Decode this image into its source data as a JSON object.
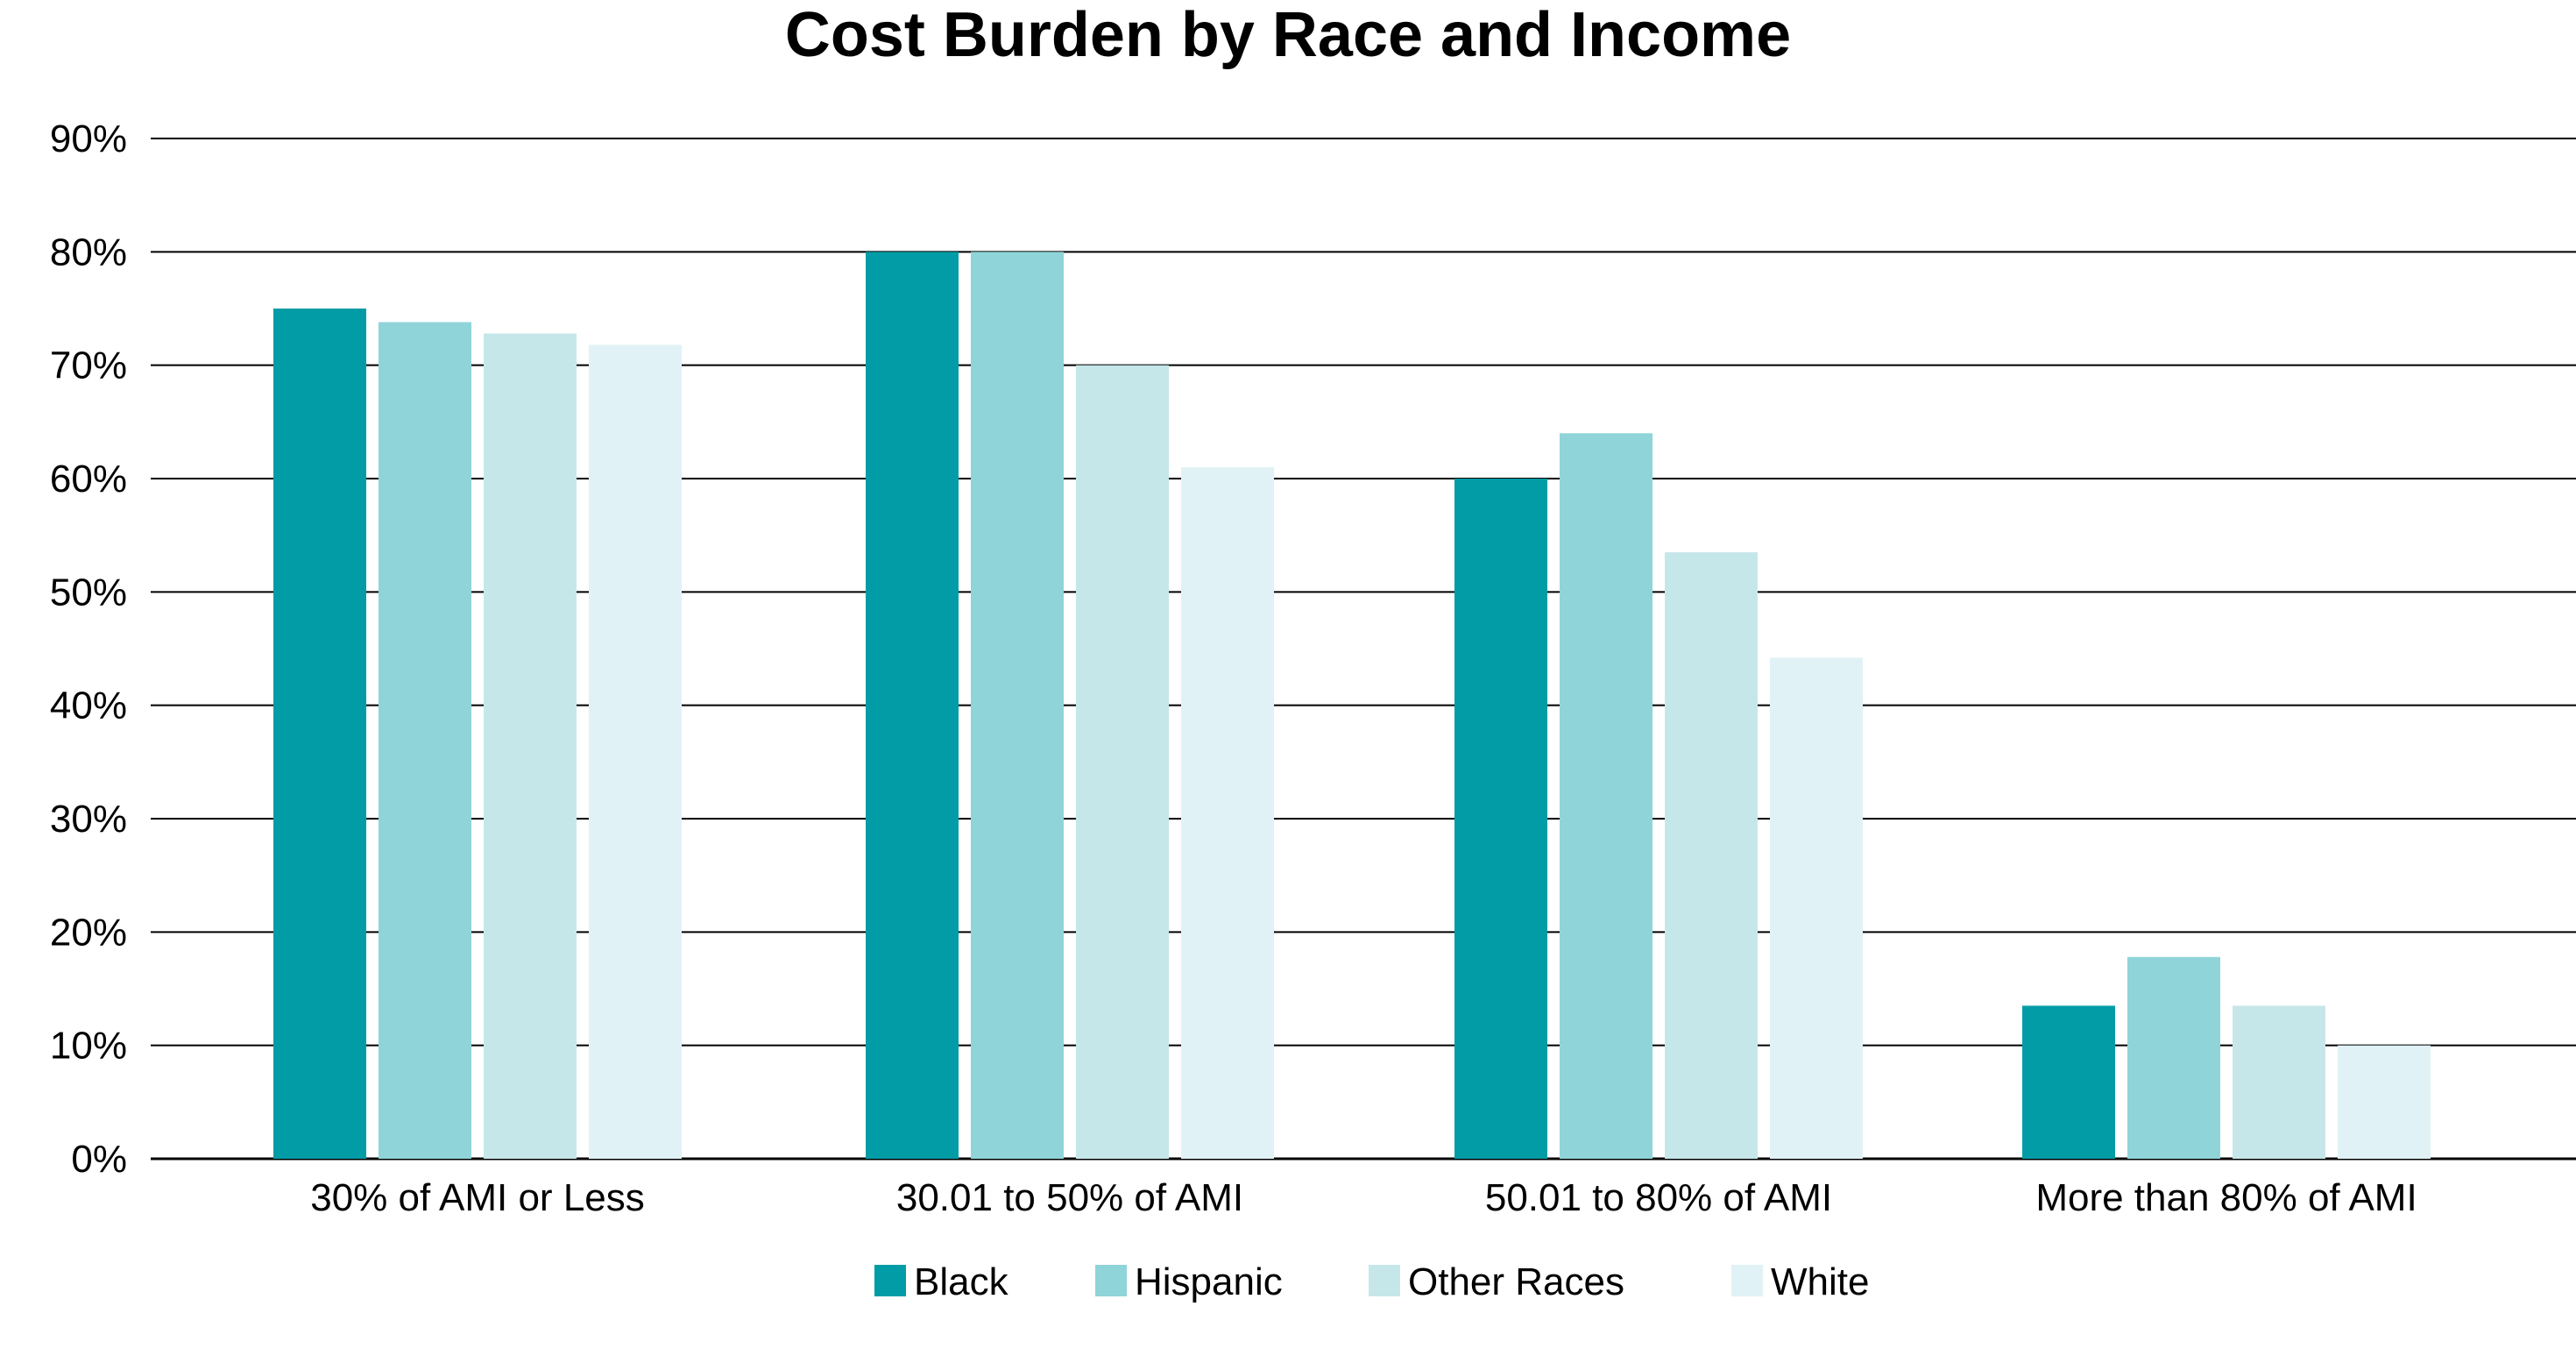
{
  "chart_data": {
    "type": "bar",
    "title": "Cost Burden by Race and Income",
    "xlabel": "",
    "ylabel": "",
    "ylim": [
      0,
      90
    ],
    "y_ticks": [
      "0%",
      "10%",
      "20%",
      "30%",
      "40%",
      "50%",
      "60%",
      "70%",
      "80%",
      "90%"
    ],
    "y_tick_values": [
      0,
      10,
      20,
      30,
      40,
      50,
      60,
      70,
      80,
      90
    ],
    "grid": true,
    "legend_position": "bottom",
    "categories": [
      "30% of AMI or Less",
      "30.01 to 50% of AMI",
      "50.01 to 80% of AMI",
      "More than 80% of AMI"
    ],
    "series": [
      {
        "name": "Black",
        "color": "#029ca6",
        "values": [
          75,
          80,
          60,
          13.5
        ]
      },
      {
        "name": "Hispanic",
        "color": "#8fd4d9",
        "values": [
          73.8,
          80,
          64,
          17.8
        ]
      },
      {
        "name": "Other Races",
        "color": "#c6e7e9",
        "values": [
          72.8,
          70,
          53.5,
          13.5
        ]
      },
      {
        "name": "White",
        "color": "#e0f2f5",
        "values": [
          71.8,
          61,
          44.2,
          10
        ]
      }
    ]
  }
}
